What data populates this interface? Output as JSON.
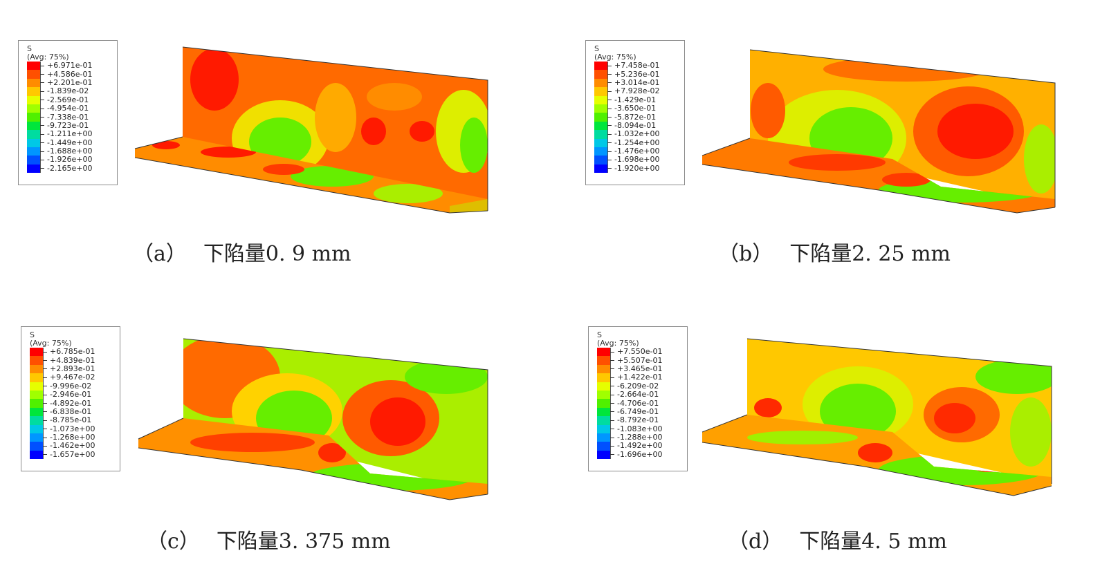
{
  "legend_header": {
    "variable": "S",
    "averaging": "(Avg: 75%)"
  },
  "colormap": [
    "#ff0000",
    "#ff5000",
    "#ff8c00",
    "#ffc800",
    "#e6ff00",
    "#a0ff00",
    "#50f000",
    "#00e63c",
    "#00dca0",
    "#00c8e6",
    "#0096ff",
    "#0050ff",
    "#0000ff"
  ],
  "panels": [
    {
      "id": "a",
      "label": "（a）",
      "caption": "下陷量0. 9 mm",
      "legend_values": [
        "+6.971e-01",
        "+4.586e-01",
        "+2.201e-01",
        "-1.839e-02",
        "-2.569e-01",
        "-4.954e-01",
        "-7.338e-01",
        "-9.723e-01",
        "-1.211e+00",
        "-1.449e+00",
        "-1.688e+00",
        "-1.926e+00",
        "-2.165e+00"
      ]
    },
    {
      "id": "b",
      "label": "（b）",
      "caption": "下陷量2. 25 mm",
      "legend_values": [
        "+7.458e-01",
        "+5.236e-01",
        "+3.014e-01",
        "+7.928e-02",
        "-1.429e-01",
        "-3.650e-01",
        "-5.872e-01",
        "-8.094e-01",
        "-1.032e+00",
        "-1.254e+00",
        "-1.476e+00",
        "-1.698e+00",
        "-1.920e+00"
      ]
    },
    {
      "id": "c",
      "label": "（c）",
      "caption": "下陷量3. 375 mm",
      "legend_values": [
        "+6.785e-01",
        "+4.839e-01",
        "+2.893e-01",
        "+9.467e-02",
        "-9.996e-02",
        "-2.946e-01",
        "-4.892e-01",
        "-6.838e-01",
        "-8.785e-01",
        "-1.073e+00",
        "-1.268e+00",
        "-1.462e+00",
        "-1.657e+00"
      ]
    },
    {
      "id": "d",
      "label": "（d）",
      "caption": "下陷量4. 5 mm",
      "legend_values": [
        "+7.550e-01",
        "+5.507e-01",
        "+3.465e-01",
        "+1.422e-01",
        "-6.209e-02",
        "-2.664e-01",
        "-4.706e-01",
        "-6.749e-01",
        "-8.792e-01",
        "-1.083e+00",
        "-1.288e+00",
        "-1.492e+00",
        "-1.696e+00"
      ]
    }
  ]
}
